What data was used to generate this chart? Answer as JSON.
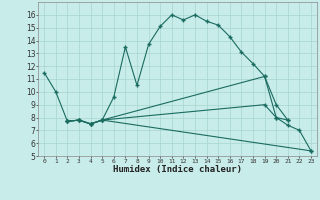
{
  "background_color": "#c8ece9",
  "grid_color": "#a8d4d0",
  "line_color": "#1a6b60",
  "xlabel": "Humidex (Indice chaleur)",
  "xlim": [
    -0.5,
    23.5
  ],
  "ylim": [
    5,
    17
  ],
  "xticks": [
    0,
    1,
    2,
    3,
    4,
    5,
    6,
    7,
    8,
    9,
    10,
    11,
    12,
    13,
    14,
    15,
    16,
    17,
    18,
    19,
    20,
    21,
    22,
    23
  ],
  "yticks": [
    5,
    6,
    7,
    8,
    9,
    10,
    11,
    12,
    13,
    14,
    15,
    16
  ],
  "line1_x": [
    0,
    1,
    2,
    3,
    4,
    5,
    6,
    7,
    8,
    9,
    10,
    11,
    12,
    13,
    14,
    15,
    16,
    17,
    18,
    19,
    20,
    21
  ],
  "line1_y": [
    11.5,
    10.0,
    7.7,
    7.8,
    7.5,
    7.8,
    9.6,
    13.5,
    10.5,
    13.7,
    15.1,
    16.0,
    15.6,
    16.0,
    15.5,
    15.2,
    14.3,
    13.1,
    12.2,
    11.2,
    8.0,
    7.8
  ],
  "line2_x": [
    2,
    3,
    4,
    5,
    19,
    20,
    21
  ],
  "line2_y": [
    7.7,
    7.8,
    7.5,
    7.8,
    11.2,
    9.0,
    7.8
  ],
  "line3_x": [
    2,
    3,
    4,
    5,
    19,
    20,
    21,
    22,
    23
  ],
  "line3_y": [
    7.7,
    7.8,
    7.5,
    7.8,
    9.0,
    8.0,
    7.4,
    7.0,
    5.4
  ],
  "line4_x": [
    2,
    3,
    4,
    5,
    23
  ],
  "line4_y": [
    7.7,
    7.8,
    7.5,
    7.8,
    5.4
  ]
}
